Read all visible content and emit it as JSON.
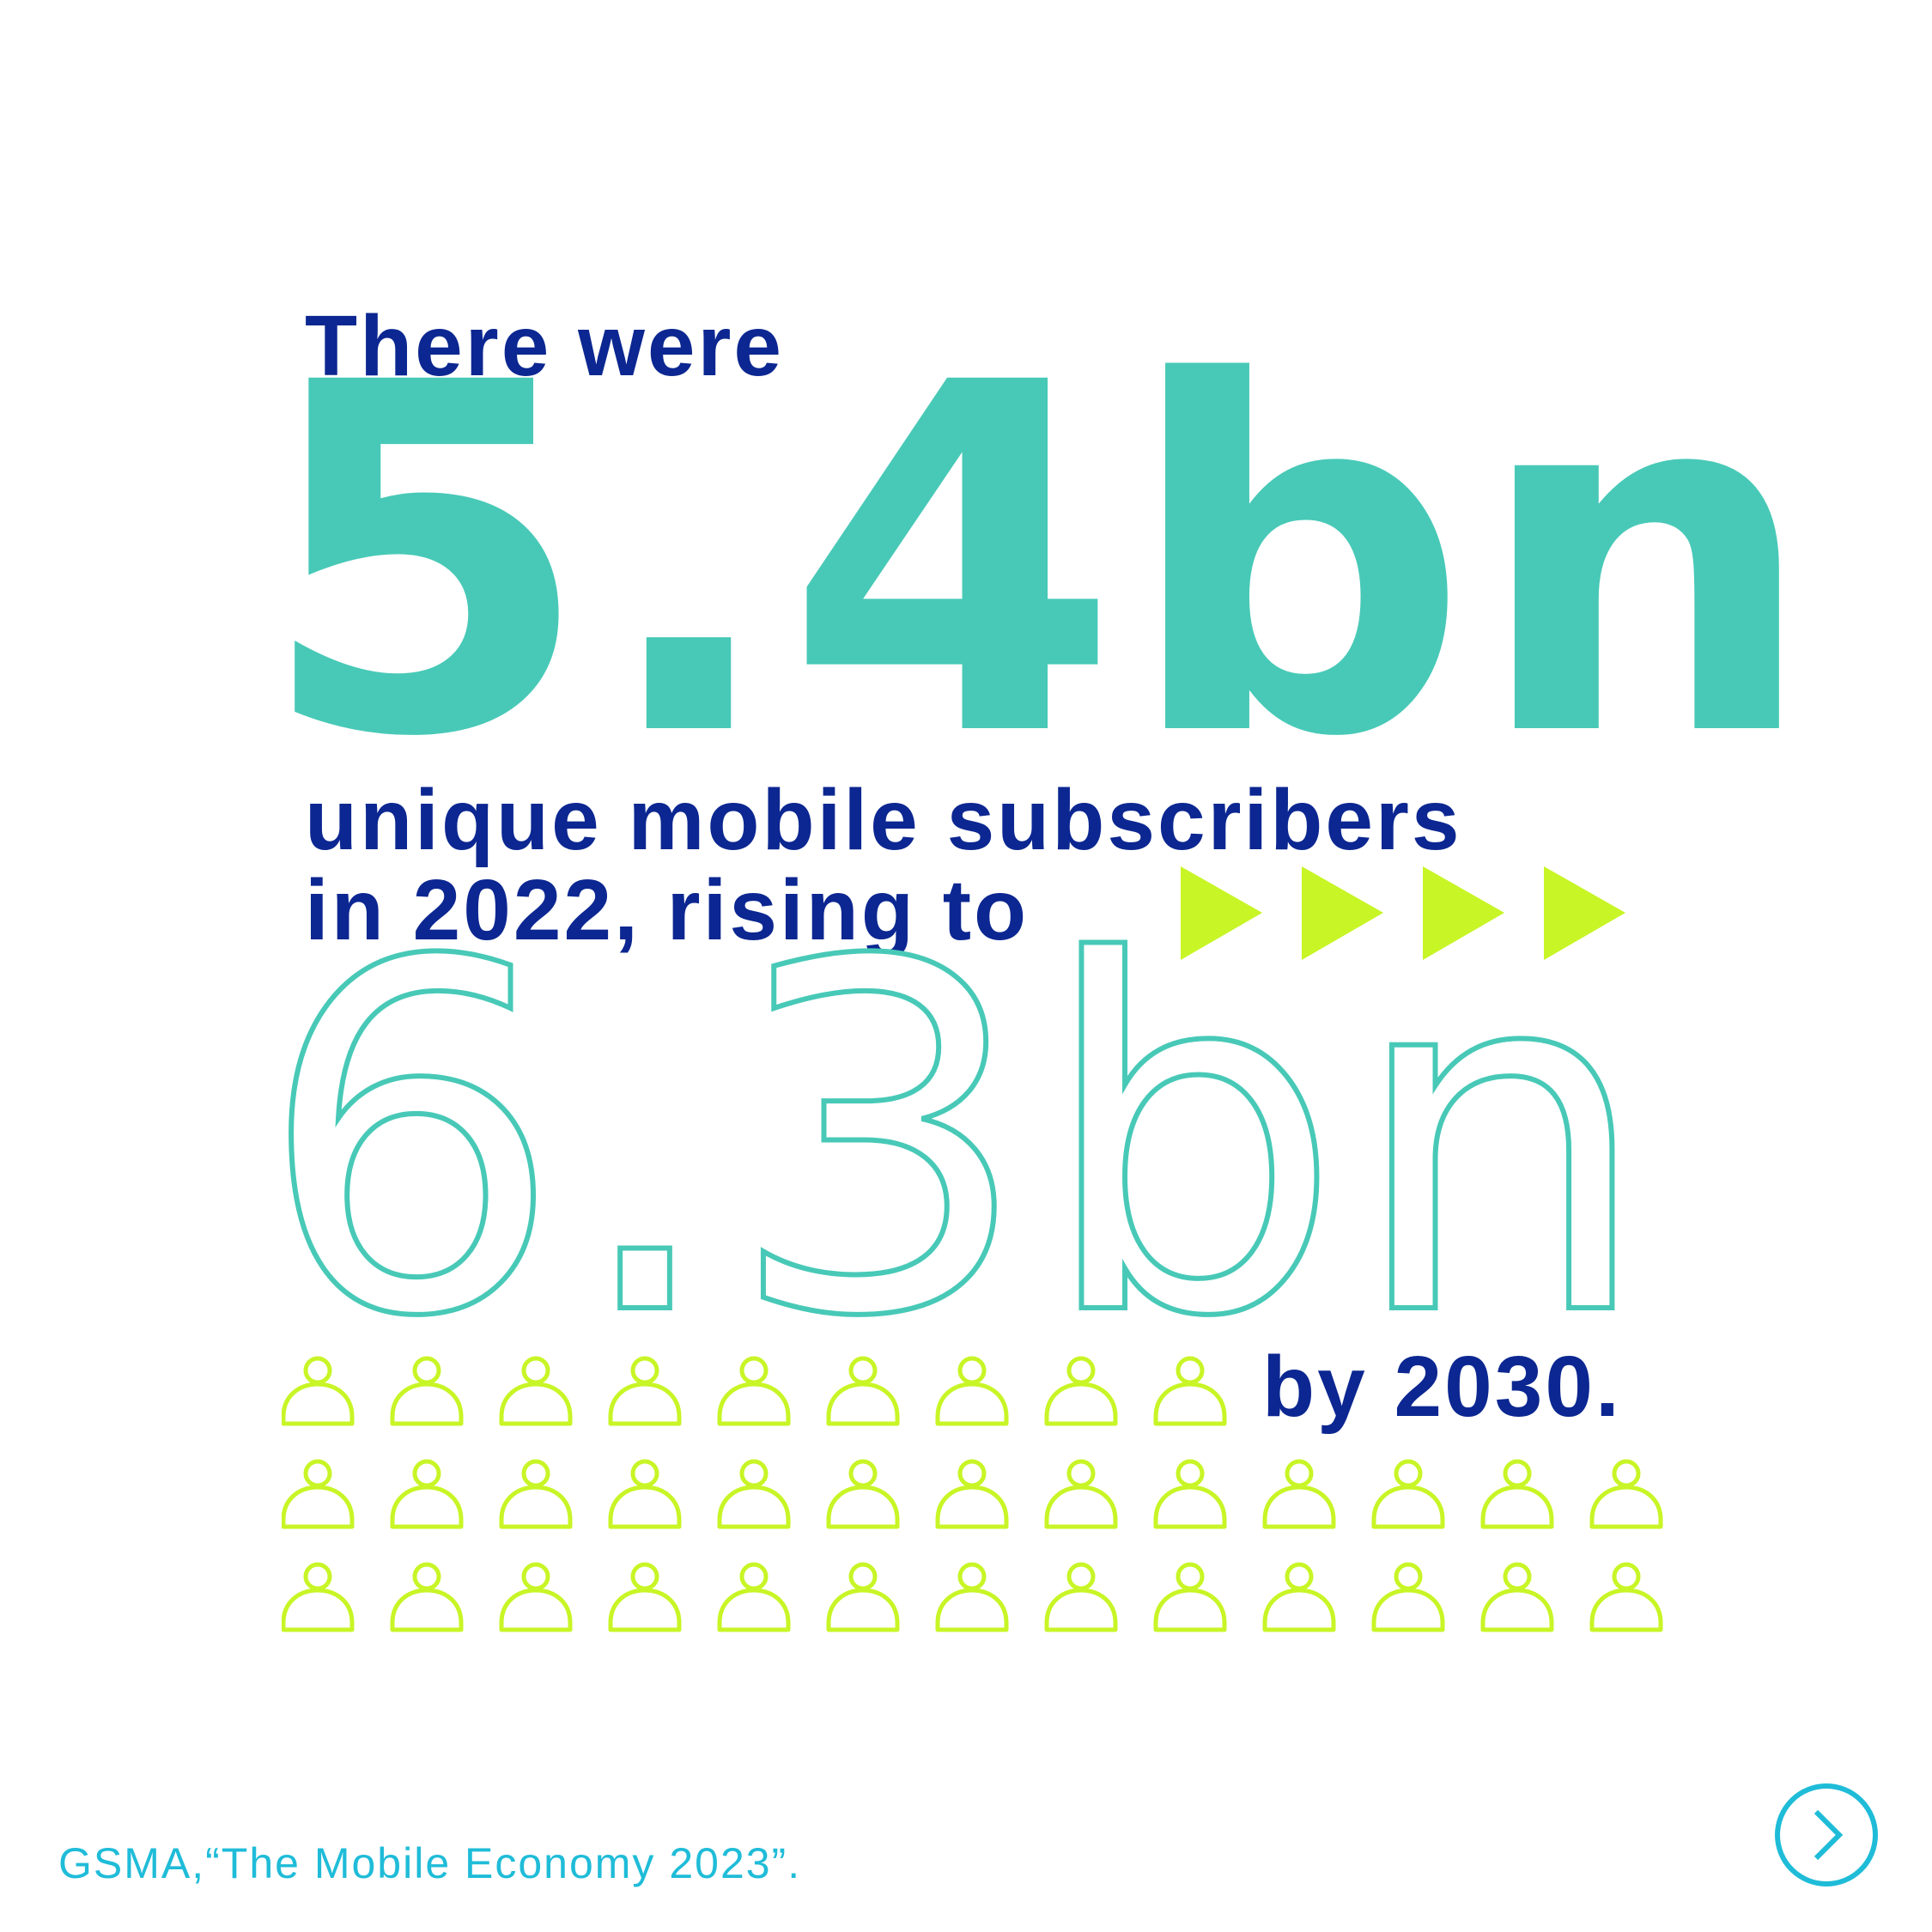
{
  "headline": {
    "intro": "There were",
    "value_2022": "5.4bn",
    "subtitle_line_1": "unique mobile subscribers",
    "subtitle_line_2": "in 2022, rising to",
    "value_2030": "6.3bn",
    "closing": "by 2030."
  },
  "source": "GSMA,“The Mobile Economy 2023”.",
  "icons": {
    "arrow_icon": "play-triangle",
    "arrow_count": 4,
    "person_icon": "person-outline",
    "person_rows": [
      9,
      13,
      13
    ]
  },
  "navigation": {
    "next_icon": "chevron-right-icon"
  },
  "colors": {
    "navy": "#0c2791",
    "teal": "#48c9b7",
    "lime": "#c8f526",
    "cyan": "#1fbcd8",
    "background": "#ffffff"
  }
}
